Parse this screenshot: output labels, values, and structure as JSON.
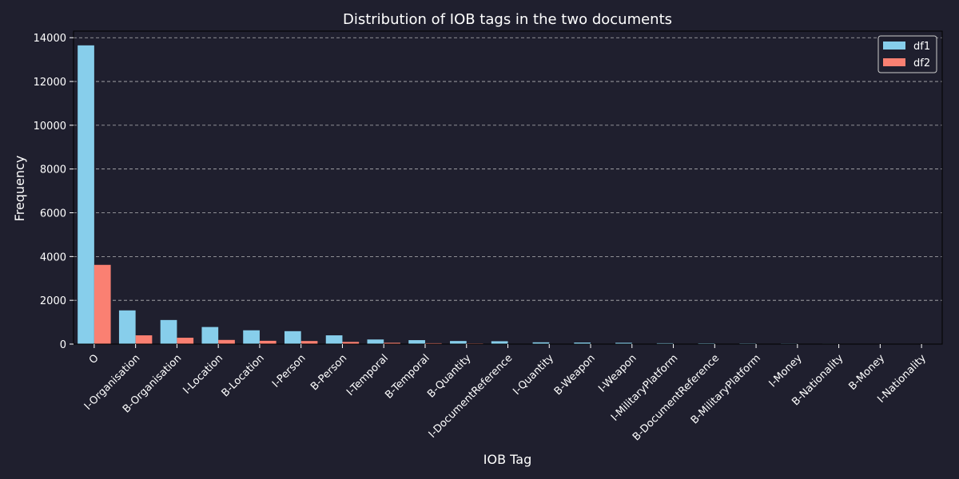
{
  "chart_data": {
    "type": "bar",
    "title": "Distribution of IOB tags in the two documents",
    "xlabel": "IOB Tag",
    "ylabel": "Frequency",
    "ylim": [
      0,
      14300
    ],
    "yticks": [
      0,
      2000,
      4000,
      6000,
      8000,
      10000,
      12000,
      14000
    ],
    "grid": "y-dashed",
    "legend_position": "top-right",
    "categories": [
      "O",
      "I-Organisation",
      "B-Organisation",
      "I-Location",
      "B-Location",
      "I-Person",
      "B-Person",
      "I-Temporal",
      "B-Temporal",
      "B-Quantity",
      "I-DocumentReference",
      "I-Quantity",
      "B-Weapon",
      "I-Weapon",
      "I-MilitaryPlatform",
      "B-DocumentReference",
      "B-MilitaryPlatform",
      "I-Money",
      "B-Nationality",
      "B-Money",
      "I-Nationality"
    ],
    "series": [
      {
        "name": "df1",
        "color": "#87ceeb",
        "values": [
          13650,
          1540,
          1100,
          780,
          630,
          590,
          400,
          210,
          180,
          140,
          130,
          80,
          70,
          60,
          40,
          35,
          30,
          25,
          20,
          10,
          8
        ]
      },
      {
        "name": "df2",
        "color": "#fa8072",
        "values": [
          3620,
          400,
          290,
          190,
          150,
          140,
          100,
          60,
          40,
          30,
          10,
          8,
          6,
          5,
          4,
          3,
          3,
          2,
          2,
          1,
          1
        ]
      }
    ]
  }
}
